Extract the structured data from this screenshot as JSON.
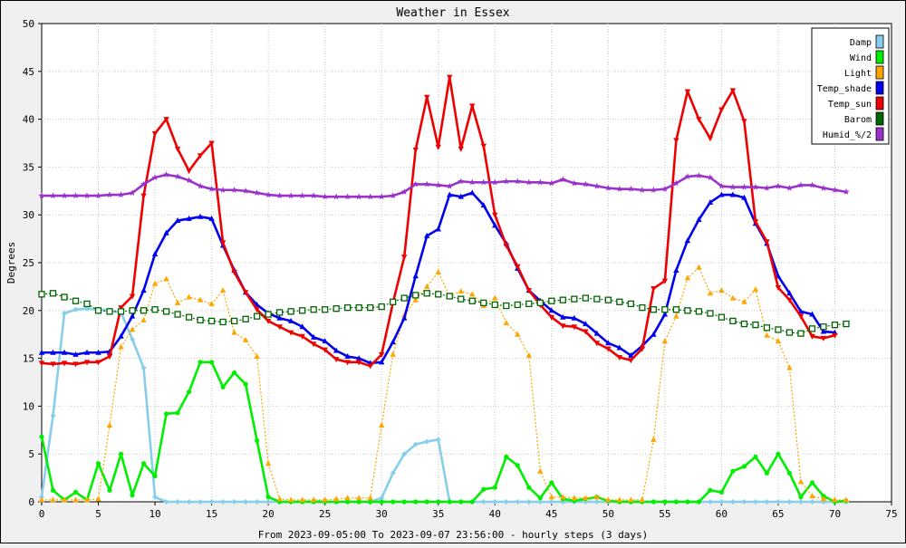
{
  "chart_data": {
    "type": "line",
    "title": "Weather in Essex",
    "xlabel": "From 2023-09-05:00 To 2023-09-07 23:56:00 - hourly steps (3 days)",
    "ylabel": "Degrees",
    "xlim": [
      0,
      75
    ],
    "ylim": [
      0,
      50
    ],
    "xticks": [
      0,
      5,
      10,
      15,
      20,
      25,
      30,
      35,
      40,
      45,
      50,
      55,
      60,
      65,
      70,
      75
    ],
    "yticks": [
      0,
      5,
      10,
      15,
      20,
      25,
      30,
      35,
      40,
      45,
      50
    ],
    "grid": true,
    "legend_position": "top-right",
    "series": [
      {
        "name": "Damp",
        "color": "#87ceeb",
        "dash": false,
        "marker": "diamond",
        "values": [
          0.5,
          9,
          19.7,
          20.1,
          20.2,
          20.1,
          20,
          19.8,
          17,
          14,
          0.5,
          0,
          0,
          0,
          0,
          0,
          0,
          0,
          0,
          0,
          0,
          0,
          0,
          0,
          0,
          0,
          0,
          0,
          0,
          0,
          0.4,
          3,
          5,
          6,
          6.3,
          6.5,
          0,
          0,
          0,
          0,
          0,
          0,
          0,
          0,
          0,
          0,
          0,
          0,
          0,
          0,
          0,
          0,
          0,
          0,
          0,
          0,
          0,
          0,
          0,
          0,
          0,
          0,
          0,
          0,
          0,
          0,
          0,
          0,
          0,
          0,
          0,
          0
        ]
      },
      {
        "name": "Wind",
        "color": "#00ee00",
        "dash": false,
        "marker": "circle",
        "values": [
          6.8,
          1.2,
          0.2,
          1,
          0.2,
          4,
          1.2,
          5,
          0.7,
          4,
          2.7,
          9.2,
          9.3,
          11.5,
          14.6,
          14.6,
          12,
          13.5,
          12.3,
          6.4,
          0.5,
          0,
          0,
          0,
          0,
          0,
          0,
          0,
          0,
          0,
          0,
          0,
          0,
          0,
          0,
          0,
          0,
          0,
          0,
          1.3,
          1.5,
          4.7,
          3.8,
          1.5,
          0.4,
          2,
          0.3,
          0.1,
          0.3,
          0.5,
          0.1,
          0,
          0,
          0,
          0,
          0,
          0,
          0,
          0,
          1.2,
          1,
          3.2,
          3.7,
          4.7,
          3,
          5,
          3,
          0.5,
          2,
          0.6,
          0,
          0.1
        ]
      },
      {
        "name": "Light",
        "color": "#ffa500",
        "dash": true,
        "marker": "triangle",
        "values": [
          0.2,
          0.2,
          0.2,
          0.2,
          0.2,
          0.3,
          8,
          16.2,
          18,
          19,
          22.8,
          23.3,
          20.8,
          21.4,
          21.1,
          20.7,
          22.1,
          17.7,
          16.9,
          15.2,
          4,
          0.3,
          0.2,
          0.2,
          0.2,
          0.2,
          0.3,
          0.4,
          0.4,
          0.4,
          8,
          15.4,
          19.5,
          21.1,
          22.5,
          24,
          21.5,
          22,
          21.7,
          20.5,
          21.3,
          18.7,
          17.5,
          15.3,
          3.2,
          0.5,
          0.5,
          0.4,
          0.4,
          0.5,
          0.2,
          0.2,
          0.2,
          0.2,
          6.5,
          16.8,
          19.4,
          23.4,
          24.5,
          21.8,
          22.1,
          21.3,
          20.9,
          22.2,
          17.4,
          16.8,
          14,
          2.1,
          0.6,
          0.3,
          0.2,
          0.2
        ]
      },
      {
        "name": "Temp_shade",
        "color": "#0000ee",
        "dash": false,
        "marker": "triangle-up",
        "values": [
          15.6,
          15.6,
          15.6,
          15.4,
          15.6,
          15.6,
          15.7,
          17.3,
          19.4,
          22.1,
          25.9,
          28.1,
          29.4,
          29.6,
          29.8,
          29.6,
          26.8,
          24.2,
          21.9,
          20.6,
          19.7,
          19.2,
          18.9,
          18.3,
          17.2,
          16.8,
          15.8,
          15.2,
          15,
          14.5,
          14.6,
          16.7,
          19.2,
          23.6,
          27.8,
          28.5,
          32.1,
          31.9,
          32.3,
          31,
          28.9,
          27,
          24.4,
          22.1,
          21,
          20,
          19.3,
          19.2,
          18.6,
          17.6,
          16.6,
          16.1,
          15.3,
          16.3,
          17.5,
          19.6,
          24.2,
          27.3,
          29.5,
          31.3,
          32.1,
          32.1,
          31.8,
          29.1,
          27,
          23.6,
          21.8,
          19.9,
          19.6,
          17.8,
          17.7
        ]
      },
      {
        "name": "Temp_sun",
        "color": "#ee0000",
        "dash": false,
        "marker": "triangle-down",
        "values": [
          14.5,
          14.4,
          14.5,
          14.4,
          14.6,
          14.6,
          15.2,
          20.3,
          21.5,
          32,
          38.5,
          40,
          36.9,
          34.6,
          36.2,
          37.5,
          27.1,
          24,
          21.9,
          20.1,
          18.9,
          18.3,
          17.7,
          17.3,
          16.5,
          15.9,
          14.9,
          14.6,
          14.6,
          14.2,
          15.4,
          20.8,
          25.6,
          36.8,
          42.3,
          37.1,
          44.4,
          36.9,
          41.4,
          37.2,
          30,
          26.8,
          24.6,
          22.1,
          20.6,
          19.3,
          18.4,
          18.3,
          17.8,
          16.6,
          16,
          15.1,
          14.8,
          16,
          22.3,
          23.1,
          37.8,
          42.9,
          40,
          38,
          41,
          43,
          39.8,
          29.3,
          27.2,
          22.4,
          21.1,
          19.4,
          17.3,
          17.1,
          17.4
        ]
      },
      {
        "name": "Barom",
        "color": "#006400",
        "dash": true,
        "marker": "square",
        "values": [
          21.7,
          21.8,
          21.4,
          21,
          20.7,
          20,
          19.9,
          19.9,
          20,
          20,
          20.1,
          19.9,
          19.6,
          19.3,
          19,
          18.9,
          18.8,
          18.9,
          19.1,
          19.4,
          19.6,
          19.8,
          19.9,
          20,
          20.1,
          20.1,
          20.2,
          20.3,
          20.3,
          20.3,
          20.4,
          20.9,
          21.3,
          21.6,
          21.8,
          21.7,
          21.5,
          21.2,
          21,
          20.8,
          20.6,
          20.5,
          20.6,
          20.7,
          20.8,
          21,
          21.1,
          21.2,
          21.3,
          21.2,
          21.1,
          20.9,
          20.7,
          20.3,
          20.1,
          20.1,
          20.1,
          20,
          19.9,
          19.7,
          19.3,
          18.9,
          18.6,
          18.5,
          18.2,
          18,
          17.7,
          17.6,
          18.1,
          18.3,
          18.5,
          18.6
        ]
      },
      {
        "name": "Humid_%/2",
        "color": "#9932cc",
        "dash": false,
        "marker": "star",
        "values": [
          32,
          32,
          32,
          32,
          32,
          32,
          32.1,
          32.1,
          32.3,
          33.2,
          33.9,
          34.2,
          34,
          33.6,
          33,
          32.7,
          32.6,
          32.6,
          32.5,
          32.3,
          32.1,
          32,
          32,
          32,
          32,
          31.9,
          31.9,
          31.9,
          31.9,
          31.9,
          31.9,
          32,
          32.4,
          33.2,
          33.2,
          33.1,
          33,
          33.5,
          33.4,
          33.4,
          33.4,
          33.5,
          33.5,
          33.4,
          33.4,
          33.3,
          33.7,
          33.3,
          33.2,
          33,
          32.8,
          32.7,
          32.7,
          32.6,
          32.6,
          32.7,
          33.3,
          34,
          34.1,
          33.9,
          33,
          32.9,
          32.9,
          32.9,
          32.8,
          33,
          32.8,
          33.1,
          33.1,
          32.8,
          32.6,
          32.4
        ]
      }
    ]
  }
}
